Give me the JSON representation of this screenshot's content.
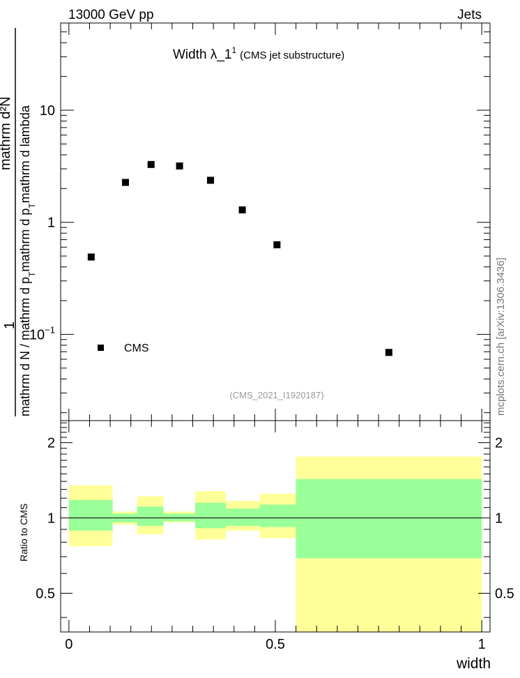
{
  "header": {
    "left": "13000 GeV pp",
    "right": "Jets"
  },
  "side_credit": "mcplots.cern.ch [arXiv:1306.3436]",
  "chart_data": [
    {
      "type": "scatter",
      "title_main": "Width λ_1",
      "title_sup": "1",
      "title_suffix": "(CMS jet substructure)",
      "analysis_id": "(CMS_2021_I1920187)",
      "ylabel": {
        "numerator": "1",
        "fraction_num": "mathrm d²N",
        "denominator_part1": "mathrm d N / mathrm d p",
        "sub1": "T",
        "denominator_part2": "mathrm d p",
        "sub2": "T",
        "denominator_part3": "mathrm d lambda"
      },
      "y_scale": "log",
      "xlim": [
        -0.02,
        1.02
      ],
      "ylim": [
        0.017,
        60
      ],
      "y_ticks": [
        {
          "value": 10,
          "label": "10"
        },
        {
          "value": 1,
          "label": "1"
        },
        {
          "value": 0.1,
          "label": "10",
          "exp": "−1"
        }
      ],
      "legend": {
        "label": "CMS",
        "position": "bottom-left"
      },
      "series": [
        {
          "name": "CMS",
          "x": [
            0.054,
            0.137,
            0.199,
            0.268,
            0.343,
            0.42,
            0.504,
            0.775
          ],
          "y": [
            0.49,
            2.27,
            3.28,
            3.18,
            2.37,
            1.29,
            0.63,
            0.069
          ]
        }
      ]
    },
    {
      "type": "area",
      "ylabel": "Ratio to CMS",
      "xlabel": "width",
      "xlim": [
        -0.02,
        1.02
      ],
      "ylim": [
        0.35,
        2.45
      ],
      "y_scale": "log",
      "x_ticks": [
        {
          "value": 0,
          "label": "0"
        },
        {
          "value": 0.5,
          "label": "0.5"
        },
        {
          "value": 1,
          "label": "1"
        }
      ],
      "y_ticks": [
        {
          "value": 2,
          "label": "2"
        },
        {
          "value": 1,
          "label": "1"
        },
        {
          "value": 0.5,
          "label": "0.5"
        }
      ],
      "reference_line": 1,
      "colors": {
        "outer_band": "#ffff99",
        "inner_band": "#99ff99"
      },
      "bins": [
        {
          "x0": 0.0,
          "x1": 0.106,
          "outer": [
            0.77,
            1.35
          ],
          "inner": [
            0.89,
            1.18
          ]
        },
        {
          "x0": 0.106,
          "x1": 0.165,
          "outer": [
            0.94,
            1.06
          ],
          "inner": [
            0.96,
            1.04
          ]
        },
        {
          "x0": 0.165,
          "x1": 0.229,
          "outer": [
            0.86,
            1.22
          ],
          "inner": [
            0.93,
            1.11
          ]
        },
        {
          "x0": 0.229,
          "x1": 0.306,
          "outer": [
            0.96,
            1.06
          ],
          "inner": [
            0.97,
            1.04
          ]
        },
        {
          "x0": 0.306,
          "x1": 0.38,
          "outer": [
            0.82,
            1.28
          ],
          "inner": [
            0.91,
            1.15
          ]
        },
        {
          "x0": 0.38,
          "x1": 0.462,
          "outer": [
            0.89,
            1.17
          ],
          "inner": [
            0.93,
            1.09
          ]
        },
        {
          "x0": 0.462,
          "x1": 0.55,
          "outer": [
            0.83,
            1.25
          ],
          "inner": [
            0.92,
            1.13
          ]
        },
        {
          "x0": 0.55,
          "x1": 1.0,
          "outer": [
            0.35,
            1.76
          ],
          "inner": [
            0.69,
            1.43
          ]
        }
      ]
    }
  ]
}
